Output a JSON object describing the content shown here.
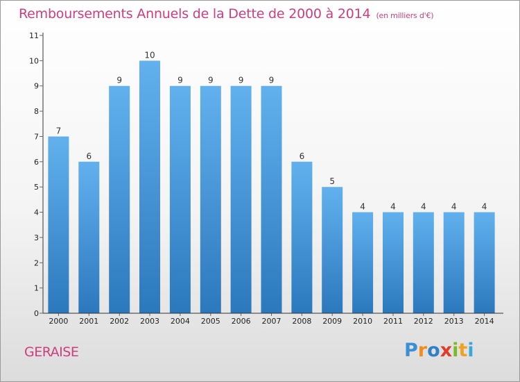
{
  "title": "Remboursements Annuels de la Dette de 2000 à 2014",
  "subtitle": "(en milliers d'€)",
  "commune": "GERAISE",
  "logo": {
    "text": "Proxiti",
    "letters": [
      "P",
      "r",
      "o",
      "x",
      "i",
      "t",
      "i"
    ],
    "colors": [
      "#3a8fd6",
      "#f28c1e",
      "#2f7fc9",
      "#e23a2b",
      "#7ab929",
      "#f0a11f",
      "#3aa7d9"
    ]
  },
  "colors": {
    "bar_top": "#62b1ee",
    "bar_bottom": "#2b78bd",
    "title": "#d03c7d",
    "axis": "#333333"
  },
  "chart_data": {
    "type": "bar",
    "title": "Remboursements Annuels de la Dette de 2000 à 2014",
    "subtitle": "(en milliers d'€)",
    "xlabel": "",
    "ylabel": "",
    "categories": [
      "2000",
      "2001",
      "2002",
      "2003",
      "2004",
      "2005",
      "2006",
      "2007",
      "2008",
      "2009",
      "2010",
      "2011",
      "2012",
      "2013",
      "2014"
    ],
    "values": [
      7,
      6,
      9,
      10,
      9,
      9,
      9,
      9,
      6,
      5,
      4,
      4,
      4,
      4,
      4
    ],
    "data_labels": [
      "7",
      "6",
      "9",
      "10",
      "9",
      "9",
      "9",
      "9",
      "6",
      "5",
      "4",
      "4",
      "4",
      "4",
      "4"
    ],
    "ylim": [
      0,
      11
    ],
    "yticks": [
      0,
      1,
      2,
      3,
      4,
      5,
      6,
      7,
      8,
      9,
      10,
      11
    ],
    "grid": false,
    "legend": "none"
  }
}
